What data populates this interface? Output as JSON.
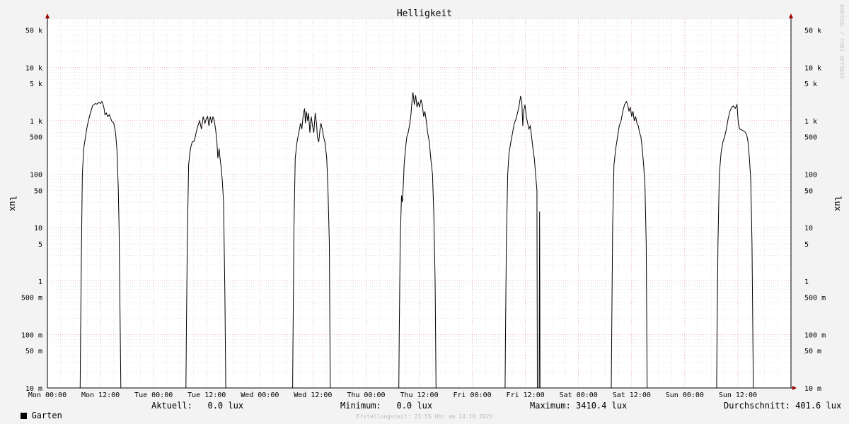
{
  "chart_data": {
    "type": "line",
    "title": "Helligkeit",
    "ylabel_left": "lux",
    "ylabel_right": "lux",
    "yscale": "log",
    "ylim": [
      0.01,
      80000
    ],
    "xlim": [
      "Mon 00:00",
      "Sun 23:55"
    ],
    "grid": true,
    "y_ticks": [
      {
        "value": 50000,
        "label": "50 k"
      },
      {
        "value": 10000,
        "label": "10 k"
      },
      {
        "value": 5000,
        "label": "5 k"
      },
      {
        "value": 1000,
        "label": "1 k"
      },
      {
        "value": 500,
        "label": "500"
      },
      {
        "value": 100,
        "label": "100"
      },
      {
        "value": 50,
        "label": "50"
      },
      {
        "value": 10,
        "label": "10"
      },
      {
        "value": 5,
        "label": "5"
      },
      {
        "value": 1,
        "label": "1"
      },
      {
        "value": 0.5,
        "label": "500 m"
      },
      {
        "value": 0.1,
        "label": "100 m"
      },
      {
        "value": 0.05,
        "label": "50 m"
      },
      {
        "value": 0.01,
        "label": "10 m"
      }
    ],
    "x_ticks": [
      "Mon 00:00",
      "Mon 12:00",
      "Tue 00:00",
      "Tue 12:00",
      "Wed 00:00",
      "Wed 12:00",
      "Thu 00:00",
      "Thu 12:00",
      "Fri 00:00",
      "Fri 12:00",
      "Sat 00:00",
      "Sat 12:00",
      "Sun 00:00",
      "Sun 12:00"
    ],
    "series": [
      {
        "name": "Garten",
        "color": "#000000",
        "x_unit": "hours since Mon 00:00",
        "points": [
          [
            0,
            0.01
          ],
          [
            7.4,
            0.01
          ],
          [
            7.5,
            0.1
          ],
          [
            7.7,
            5
          ],
          [
            7.9,
            100
          ],
          [
            8.2,
            300
          ],
          [
            8.6,
            500
          ],
          [
            9,
            800
          ],
          [
            9.6,
            1300
          ],
          [
            10.2,
            1900
          ],
          [
            10.8,
            2100
          ],
          [
            11.2,
            2050
          ],
          [
            11.6,
            2200
          ],
          [
            12,
            2100
          ],
          [
            12.3,
            2300
          ],
          [
            12.6,
            2000
          ],
          [
            12.8,
            1700
          ],
          [
            13,
            1300
          ],
          [
            13.3,
            1400
          ],
          [
            13.6,
            1200
          ],
          [
            14,
            1300
          ],
          [
            14.5,
            1000
          ],
          [
            15,
            900
          ],
          [
            15.4,
            600
          ],
          [
            15.7,
            300
          ],
          [
            16,
            60
          ],
          [
            16.2,
            10
          ],
          [
            16.4,
            0.3
          ],
          [
            16.6,
            0.01
          ],
          [
            31.3,
            0.01
          ],
          [
            31.4,
            0.1
          ],
          [
            31.6,
            5
          ],
          [
            31.9,
            150
          ],
          [
            32.3,
            300
          ],
          [
            32.7,
            400
          ],
          [
            33.2,
            420
          ],
          [
            33.6,
            600
          ],
          [
            34,
            800
          ],
          [
            34.4,
            1000
          ],
          [
            34.8,
            700
          ],
          [
            35.2,
            1200
          ],
          [
            35.6,
            900
          ],
          [
            35.9,
            1100
          ],
          [
            36.2,
            1200
          ],
          [
            36.5,
            800
          ],
          [
            36.8,
            1200
          ],
          [
            37.1,
            900
          ],
          [
            37.4,
            1200
          ],
          [
            37.7,
            1000
          ],
          [
            38,
            700
          ],
          [
            38.3,
            400
          ],
          [
            38.5,
            200
          ],
          [
            38.8,
            300
          ],
          [
            39,
            200
          ],
          [
            39.2,
            150
          ],
          [
            39.5,
            80
          ],
          [
            39.8,
            30
          ],
          [
            40.1,
            0.5
          ],
          [
            40.3,
            0.01
          ],
          [
            55.4,
            0.01
          ],
          [
            55.5,
            0.1
          ],
          [
            55.7,
            10
          ],
          [
            56,
            200
          ],
          [
            56.4,
            400
          ],
          [
            56.8,
            600
          ],
          [
            57.2,
            900
          ],
          [
            57.5,
            700
          ],
          [
            57.8,
            1300
          ],
          [
            58.1,
            1700
          ],
          [
            58.3,
            900
          ],
          [
            58.5,
            1500
          ],
          [
            58.8,
            1000
          ],
          [
            59,
            1400
          ],
          [
            59.3,
            600
          ],
          [
            59.6,
            1200
          ],
          [
            59.9,
            800
          ],
          [
            60.2,
            600
          ],
          [
            60.5,
            1400
          ],
          [
            60.8,
            900
          ],
          [
            61,
            500
          ],
          [
            61.3,
            400
          ],
          [
            61.6,
            700
          ],
          [
            61.8,
            900
          ],
          [
            62.1,
            700
          ],
          [
            62.4,
            500
          ],
          [
            62.7,
            400
          ],
          [
            63.1,
            200
          ],
          [
            63.4,
            50
          ],
          [
            63.7,
            5
          ],
          [
            63.9,
            0.01
          ],
          [
            79.4,
            0.01
          ],
          [
            79.5,
            0.1
          ],
          [
            79.7,
            5
          ],
          [
            80,
            40
          ],
          [
            80.2,
            30
          ],
          [
            80.4,
            60
          ],
          [
            80.6,
            150
          ],
          [
            80.9,
            300
          ],
          [
            81.2,
            500
          ],
          [
            81.5,
            600
          ],
          [
            81.8,
            800
          ],
          [
            82.1,
            1200
          ],
          [
            82.4,
            2500
          ],
          [
            82.6,
            3410
          ],
          [
            82.9,
            2000
          ],
          [
            83.2,
            3000
          ],
          [
            83.5,
            1800
          ],
          [
            83.8,
            2200
          ],
          [
            84.1,
            1800
          ],
          [
            84.4,
            2500
          ],
          [
            84.7,
            2000
          ],
          [
            85,
            1200
          ],
          [
            85.3,
            1500
          ],
          [
            85.6,
            1000
          ],
          [
            85.9,
            600
          ],
          [
            86.3,
            400
          ],
          [
            86.6,
            200
          ],
          [
            87,
            100
          ],
          [
            87.3,
            20
          ],
          [
            87.6,
            1
          ],
          [
            87.8,
            0.01
          ],
          [
            103.4,
            0.01
          ],
          [
            103.5,
            0.1
          ],
          [
            103.7,
            5
          ],
          [
            104,
            100
          ],
          [
            104.3,
            250
          ],
          [
            104.7,
            400
          ],
          [
            105.1,
            600
          ],
          [
            105.5,
            900
          ],
          [
            105.9,
            1100
          ],
          [
            106.3,
            1500
          ],
          [
            106.6,
            2000
          ],
          [
            106.9,
            2900
          ],
          [
            107.2,
            2200
          ],
          [
            107.4,
            800
          ],
          [
            107.6,
            1500
          ],
          [
            107.9,
            2000
          ],
          [
            108.2,
            1200
          ],
          [
            108.5,
            900
          ],
          [
            108.8,
            700
          ],
          [
            109.1,
            800
          ],
          [
            109.4,
            500
          ],
          [
            109.7,
            300
          ],
          [
            110,
            200
          ],
          [
            110.3,
            100
          ],
          [
            110.6,
            50
          ],
          [
            110.7,
            0.01
          ],
          [
            111.1,
            0.01
          ],
          [
            111.2,
            20
          ],
          [
            111.3,
            0.01
          ],
          [
            127.4,
            0.01
          ],
          [
            127.5,
            0.1
          ],
          [
            127.7,
            10
          ],
          [
            128,
            150
          ],
          [
            128.4,
            300
          ],
          [
            128.8,
            500
          ],
          [
            129.2,
            800
          ],
          [
            129.6,
            1000
          ],
          [
            130,
            1500
          ],
          [
            130.4,
            2000
          ],
          [
            130.8,
            2300
          ],
          [
            131.1,
            2000
          ],
          [
            131.4,
            1500
          ],
          [
            131.7,
            1800
          ],
          [
            132,
            1200
          ],
          [
            132.3,
            1500
          ],
          [
            132.6,
            1000
          ],
          [
            132.9,
            1200
          ],
          [
            133.2,
            900
          ],
          [
            133.5,
            800
          ],
          [
            133.8,
            600
          ],
          [
            134.1,
            500
          ],
          [
            134.4,
            300
          ],
          [
            134.7,
            150
          ],
          [
            135,
            60
          ],
          [
            135.3,
            5
          ],
          [
            135.5,
            0.01
          ],
          [
            151.2,
            0.01
          ],
          [
            151.3,
            0.1
          ],
          [
            151.5,
            5
          ],
          [
            151.8,
            100
          ],
          [
            152.2,
            250
          ],
          [
            152.6,
            400
          ],
          [
            153,
            500
          ],
          [
            153.4,
            700
          ],
          [
            153.8,
            1100
          ],
          [
            154.2,
            1500
          ],
          [
            154.6,
            1800
          ],
          [
            155,
            1900
          ],
          [
            155.4,
            1700
          ],
          [
            155.8,
            2000
          ],
          [
            156.1,
            900
          ],
          [
            156.4,
            700
          ],
          [
            156.8,
            680
          ],
          [
            157.2,
            650
          ],
          [
            157.6,
            620
          ],
          [
            158,
            550
          ],
          [
            158.3,
            400
          ],
          [
            158.6,
            200
          ],
          [
            158.9,
            80
          ],
          [
            159.2,
            5
          ],
          [
            159.5,
            0.01
          ],
          [
            168,
            0.01
          ]
        ]
      }
    ]
  },
  "legend": {
    "series_name": "Garten",
    "current": "Aktuell:   0.0 lux",
    "minimum": "Minimum:   0.0 lux",
    "maximum": "Maximum: 3410.4 lux",
    "average": "Durchschnitt: 401.6 lux"
  },
  "footer": "Erstellungszeit: 23:55 Uhr am 24.10.2021",
  "watermark": "RRDTOOL / TOBI OETIKER"
}
